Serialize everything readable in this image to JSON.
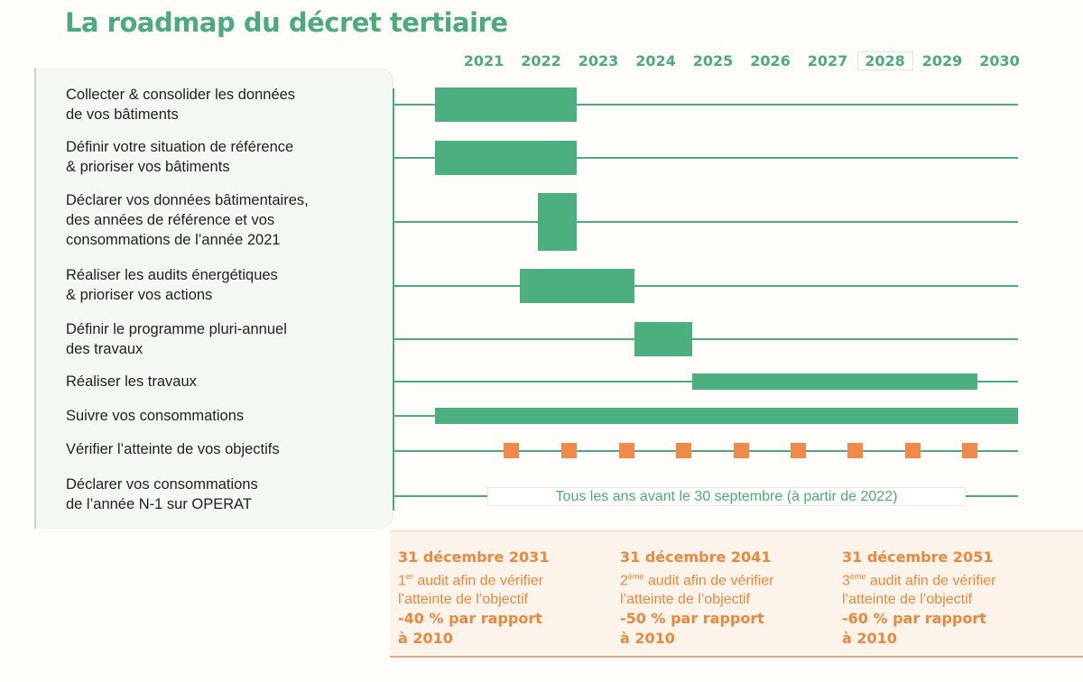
{
  "title": "La roadmap du décret tertiaire",
  "chart_data": {
    "type": "gantt",
    "years": [
      "2021",
      "2022",
      "2023",
      "2024",
      "2025",
      "2026",
      "2027",
      "2028",
      "2029",
      "2030"
    ],
    "highlighted_year": "2028",
    "tasks": [
      {
        "label": "Collecter & consolider les données\nde vos bâtiments",
        "start": 2021.0,
        "end": 2023.0
      },
      {
        "label": "Définir votre situation de référence\n& prioriser vos bâtiments",
        "start": 2021.0,
        "end": 2023.0
      },
      {
        "label": "Déclarer vos données bâtimentaires,\ndes années de référence et vos\nconsommations de l’année 2021",
        "start": 2022.0,
        "end": 2023.0
      },
      {
        "label": "Réaliser les audits énergétiques\n& prioriser vos actions",
        "start": 2021.7,
        "end": 2024.0
      },
      {
        "label": "Définir le programme pluri-annuel\ndes travaux",
        "start": 2024.0,
        "end": 2025.0
      },
      {
        "label": "Réaliser les travaux",
        "start": 2025.0,
        "end": 2029.9
      },
      {
        "label": "Suivre vos consommations",
        "start": 2021.0,
        "end": 2030.0
      },
      {
        "label": "Vérifier l’atteinte de vos objectifs",
        "markers": [
          2021.5,
          2022.5,
          2023.5,
          2024.5,
          2025.5,
          2026.5,
          2027.5,
          2028.5,
          2029.5
        ]
      },
      {
        "label": "Déclarer vos consommations\nde l’année N-1 sur OPERAT",
        "note": "Tous les ans avant le 30 septembre (à partir de 2022)"
      }
    ],
    "colors": {
      "bar": "#4caf80",
      "line": "#4caa7d",
      "marker": "#f08a4b"
    }
  },
  "milestones": [
    {
      "date": "31 décembre 2031",
      "ordinal": "1",
      "ordinal_suffix": "er",
      "text1": " audit afin de vérifier",
      "text2": "l’atteinte de l’objectif",
      "target": "-40 % par rapport\nà 2010"
    },
    {
      "date": "31 décembre 2041",
      "ordinal": "2",
      "ordinal_suffix": "ème",
      "text1": " audit afin de vérifier",
      "text2": "l’atteinte de l’objectif",
      "target": "-50 % par rapport\nà 2010"
    },
    {
      "date": "31 décembre 2051",
      "ordinal": "3",
      "ordinal_suffix": "ème",
      "text1": " audit afin de vérifier",
      "text2": "l’atteinte de l’objectif",
      "target": "-60 % par rapport\nà 2010"
    }
  ]
}
